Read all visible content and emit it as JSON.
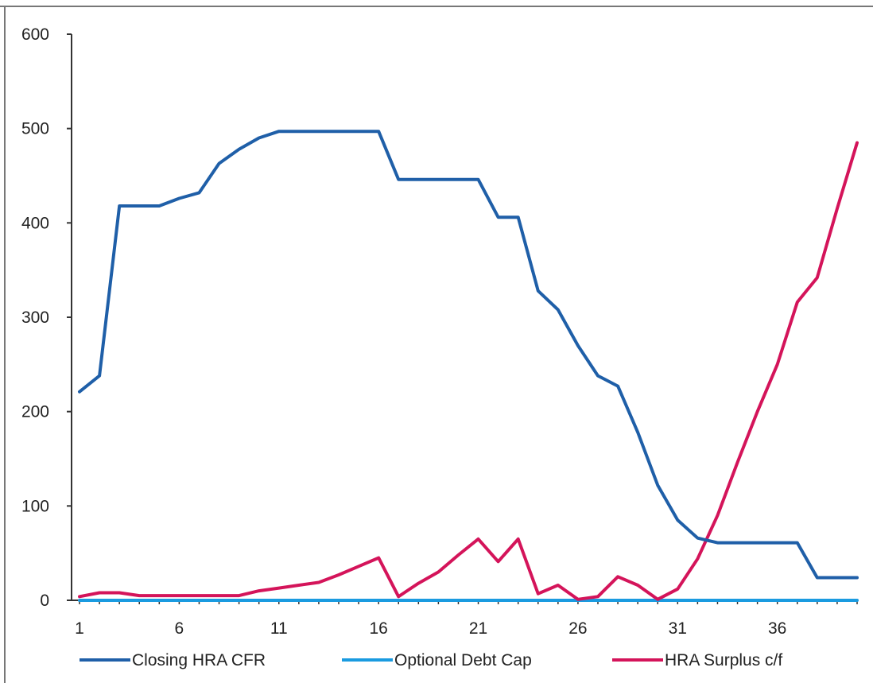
{
  "chart_data": {
    "type": "line",
    "title": "",
    "xlabel": "",
    "ylabel": "",
    "ylim": [
      0,
      600
    ],
    "yticks": [
      0,
      100,
      200,
      300,
      400,
      500,
      600
    ],
    "xlim": [
      1,
      40
    ],
    "xticks": [
      1,
      6,
      11,
      16,
      21,
      26,
      31,
      36
    ],
    "grid": false,
    "legend_position": "bottom",
    "x": [
      1,
      2,
      3,
      4,
      5,
      6,
      7,
      8,
      9,
      10,
      11,
      12,
      13,
      14,
      15,
      16,
      17,
      18,
      19,
      20,
      21,
      22,
      23,
      24,
      25,
      26,
      27,
      28,
      29,
      30,
      31,
      32,
      33,
      34,
      35,
      36,
      37,
      38,
      39,
      40
    ],
    "series": [
      {
        "name": "Closing HRA CFR",
        "color": "#1f5fa8",
        "values": [
          221,
          238,
          418,
          418,
          418,
          426,
          432,
          463,
          478,
          490,
          497,
          497,
          497,
          497,
          497,
          497,
          446,
          446,
          446,
          446,
          446,
          406,
          406,
          328,
          308,
          270,
          238,
          227,
          178,
          122,
          85,
          66,
          61,
          61,
          61,
          61,
          61,
          24,
          24,
          24
        ]
      },
      {
        "name": "Optional Debt Cap",
        "color": "#1a9be0",
        "values": [
          0,
          0,
          0,
          0,
          0,
          0,
          0,
          0,
          0,
          0,
          0,
          0,
          0,
          0,
          0,
          0,
          0,
          0,
          0,
          0,
          0,
          0,
          0,
          0,
          0,
          0,
          0,
          0,
          0,
          0,
          0,
          0,
          0,
          0,
          0,
          0,
          0,
          0,
          0,
          0
        ]
      },
      {
        "name": "HRA Surplus c/f",
        "color": "#d4145a",
        "values": [
          4,
          8,
          8,
          5,
          5,
          5,
          5,
          5,
          5,
          10,
          13,
          16,
          19,
          27,
          36,
          45,
          4,
          18,
          30,
          48,
          65,
          41,
          65,
          7,
          16,
          1,
          4,
          25,
          16,
          1,
          12,
          44,
          90,
          146,
          200,
          250,
          316,
          342,
          415,
          485
        ]
      }
    ]
  }
}
